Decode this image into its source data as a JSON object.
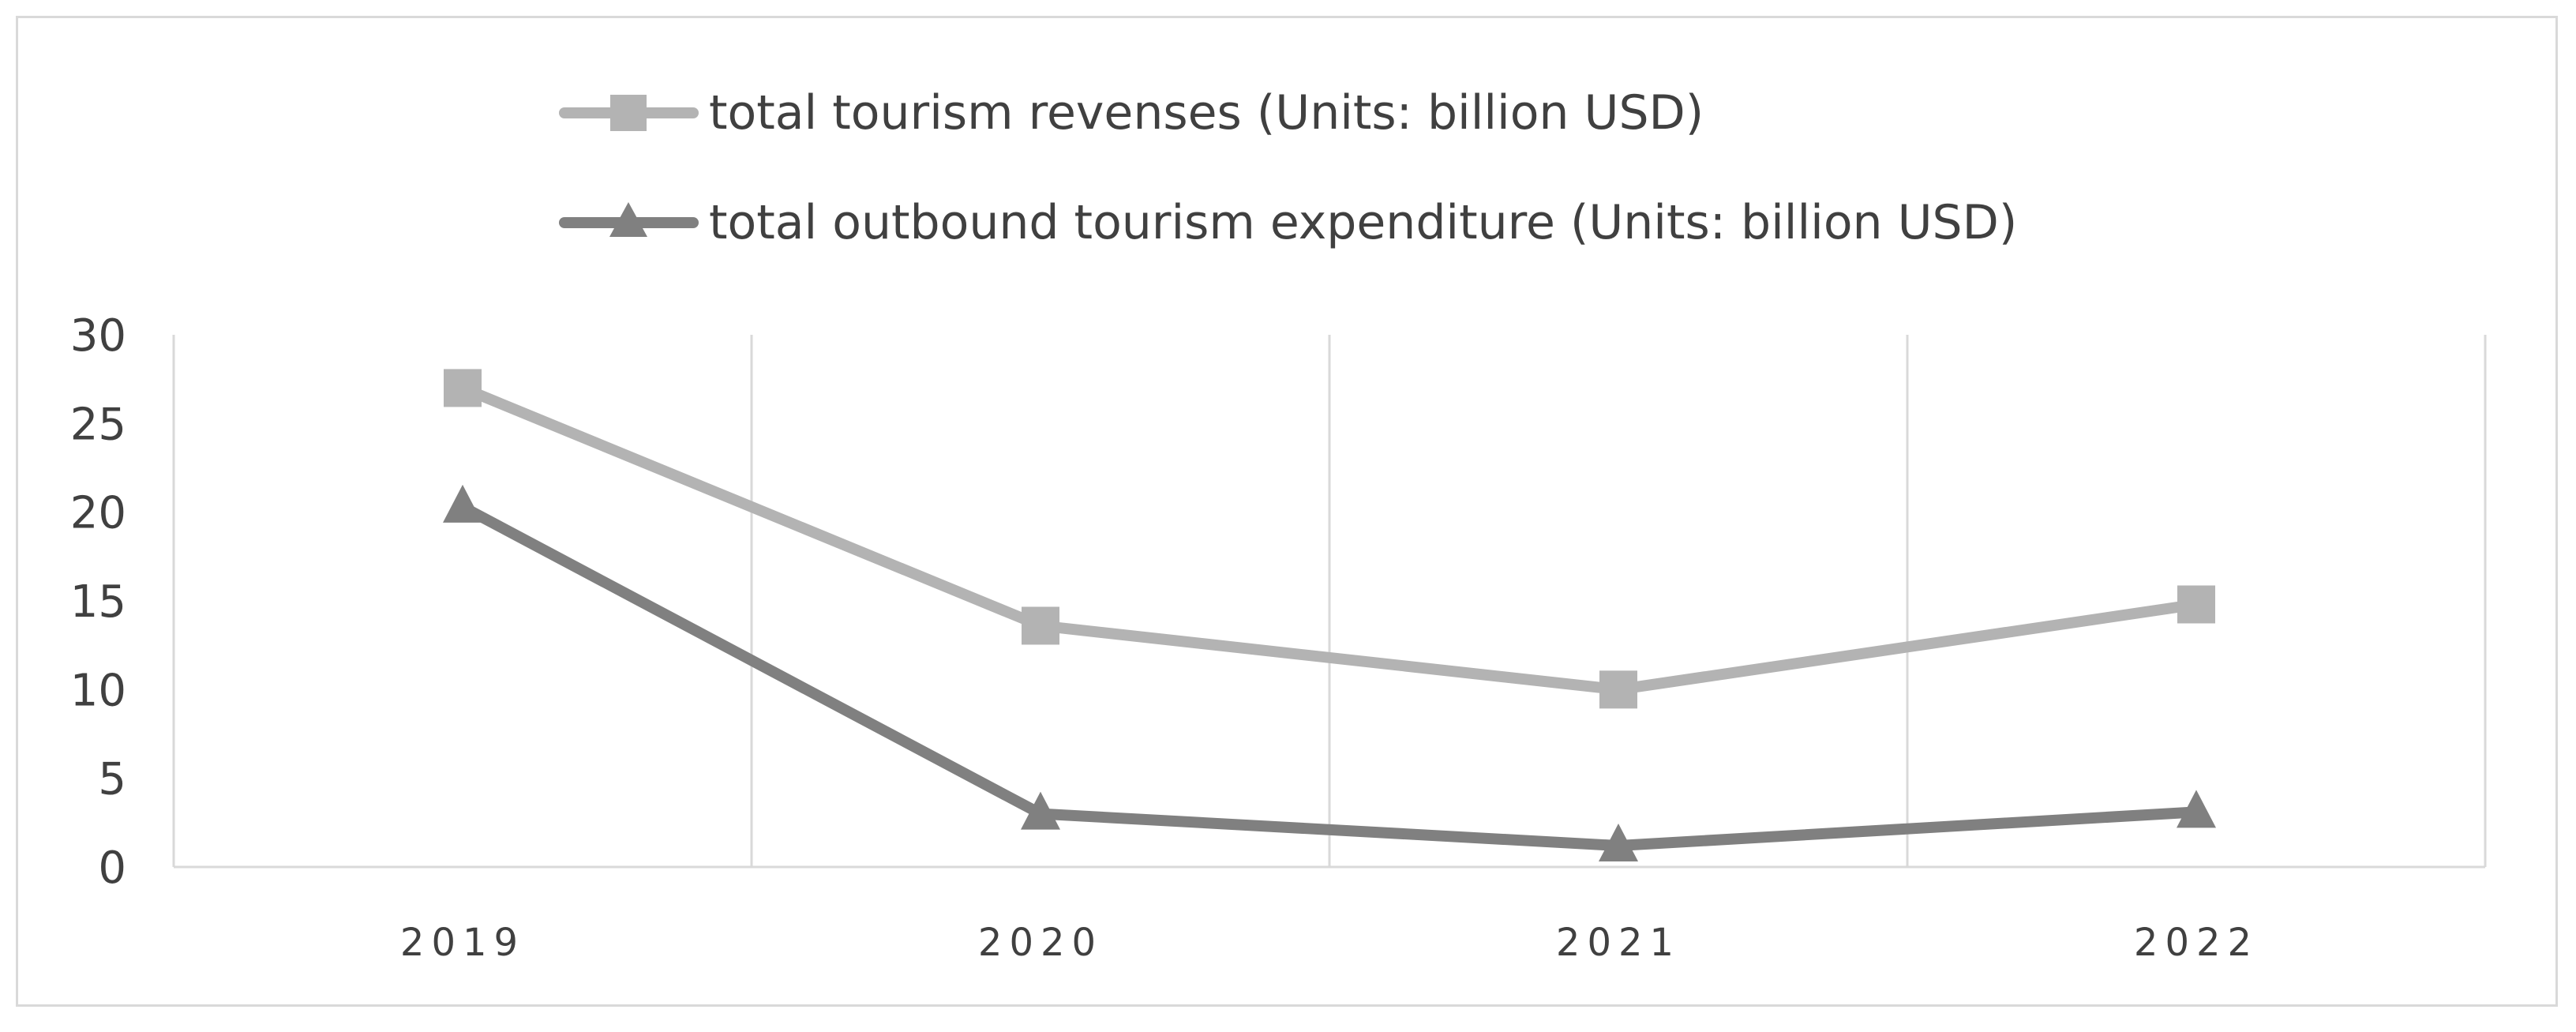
{
  "chart_data": {
    "type": "line",
    "categories": [
      "2019",
      "2020",
      "2021",
      "2022"
    ],
    "series": [
      {
        "name": "total tourism revenses (Units: billion USD)",
        "values": [
          27,
          13.6,
          10,
          14.8
        ],
        "color": "#b3b3b3",
        "marker": "square"
      },
      {
        "name": "total outbound tourism expenditure (Units: billion USD)",
        "values": [
          20.3,
          3,
          1.2,
          3.1
        ],
        "color": "#808080",
        "marker": "triangle"
      }
    ],
    "ylim": [
      0,
      30
    ],
    "yticks": [
      "0",
      "5",
      "10",
      "15",
      "20",
      "25",
      "30"
    ],
    "grid": "vertical",
    "legend": "top",
    "title": "",
    "xlabel": "",
    "ylabel": ""
  }
}
